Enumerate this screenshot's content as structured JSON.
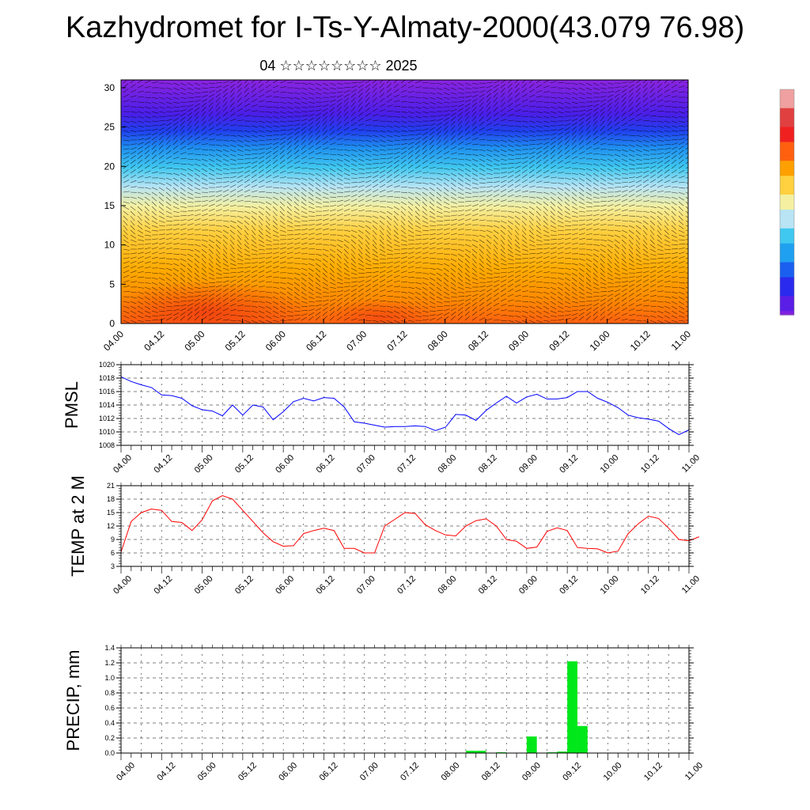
{
  "header": {
    "title": "Kazhydromet for I-Ts-Y-Almaty-2000(43.079 76.98)",
    "subtitle": "04 ☆☆☆☆☆☆☆☆ 2025"
  },
  "colors": {
    "pmsl_line": "#0000ff",
    "temp_line": "#ff0000",
    "precip_bar": "#00e81a",
    "colorbar": [
      "#7f1fe0",
      "#5a1ee6",
      "#2a2aee",
      "#1a5ff0",
      "#1fa0f0",
      "#40c8f0",
      "#b8e4f4",
      "#f4f0a0",
      "#ffd040",
      "#ffa000",
      "#ff6010",
      "#f02020",
      "#e04040",
      "#f0a0a0"
    ]
  },
  "chart_data": [
    {
      "id": "cross-section",
      "type": "heatmap",
      "x_tick_labels": [
        "04.00",
        "04.12",
        "05.00",
        "05.12",
        "06.00",
        "06.12",
        "07.00",
        "07.12",
        "08.00",
        "08.12",
        "09.00",
        "09.12",
        "10.00",
        "10.12",
        "11.00"
      ],
      "y_ticks": [
        0,
        5,
        10,
        15,
        20,
        25,
        30
      ],
      "ylim": [
        0,
        31
      ],
      "overlay": "wind barbs",
      "colorbar_tick_labels": []
    },
    {
      "id": "pmsl",
      "type": "line",
      "ylabel": "PMSL",
      "ylim": [
        1008,
        1020
      ],
      "y_ticks": [
        1008,
        1010,
        1012,
        1014,
        1016,
        1018,
        1020
      ],
      "x_tick_labels": [
        "04.00",
        "04.12",
        "05.00",
        "05.12",
        "06.00",
        "06.12",
        "07.00",
        "07.12",
        "08.00",
        "08.12",
        "09.00",
        "09.12",
        "10.00",
        "10.12",
        "11.00"
      ],
      "grid": true,
      "x_hours_step": 3,
      "series": [
        {
          "values": [
            1018.2,
            1017.5,
            1017.0,
            1016.6,
            1015.5,
            1015.4,
            1015.0,
            1013.9,
            1013.3,
            1013.1,
            1012.4,
            1014.0,
            1012.5,
            1014.0,
            1013.7,
            1011.8,
            1013.0,
            1014.5,
            1015.0,
            1014.6,
            1015.1,
            1015.0,
            1013.7,
            1011.5,
            1011.3,
            1011.0,
            1010.7,
            1010.8,
            1010.8,
            1010.9,
            1010.8,
            1010.2,
            1010.7,
            1012.6,
            1012.5,
            1011.7,
            1013.2,
            1014.3,
            1015.3,
            1014.3,
            1015.2,
            1015.6,
            1014.9,
            1014.9,
            1015.1,
            1016.0,
            1016.0,
            1015.0,
            1014.4,
            1013.6,
            1012.5,
            1012.1,
            1011.9,
            1011.6,
            1010.5,
            1009.6,
            1010.3
          ]
        }
      ]
    },
    {
      "id": "temp",
      "type": "line",
      "ylabel": "TEMP at 2 M",
      "ylim": [
        3,
        21
      ],
      "y_ticks": [
        3,
        6,
        9,
        12,
        15,
        18,
        21
      ],
      "x_tick_labels": [
        "04.00",
        "04.12",
        "05.00",
        "05.12",
        "06.00",
        "06.12",
        "07.00",
        "07.12",
        "08.00",
        "08.12",
        "09.00",
        "09.12",
        "10.00",
        "10.12",
        "11.00"
      ],
      "grid": true,
      "x_hours_step": 3,
      "series": [
        {
          "values": [
            6.2,
            13.0,
            15.0,
            15.8,
            15.5,
            13.0,
            12.8,
            11.0,
            13.4,
            17.6,
            18.8,
            18.0,
            15.5,
            13.0,
            10.5,
            8.5,
            7.5,
            7.6,
            10.3,
            11.0,
            11.5,
            11.0,
            7.0,
            7.0,
            6.0,
            6.0,
            12.0,
            13.5,
            15.0,
            14.8,
            12.3,
            11.0,
            10.0,
            9.8,
            12.0,
            13.2,
            13.6,
            12.0,
            9.0,
            8.6,
            7.0,
            7.3,
            10.8,
            11.6,
            11.0,
            7.2,
            7.0,
            6.9,
            6.0,
            6.4,
            10.3,
            12.5,
            14.2,
            13.7,
            11.5,
            9.0,
            8.7,
            9.6
          ]
        }
      ]
    },
    {
      "id": "precip",
      "type": "bar",
      "ylabel": "PRECIP, mm",
      "ylim": [
        0,
        1.4
      ],
      "y_ticks": [
        0.0,
        0.2,
        0.4,
        0.6,
        0.8,
        1.0,
        1.2,
        1.4
      ],
      "x_tick_labels": [
        "04.00",
        "04.12",
        "05.00",
        "05.12",
        "06.00",
        "06.12",
        "07.00",
        "07.12",
        "08.00",
        "08.12",
        "09.00",
        "09.12",
        "10.00",
        "10.12",
        "11.00"
      ],
      "grid": true,
      "x_hours_step": 3,
      "bar_width_hours": 3,
      "bars": [
        {
          "start_hour": 102,
          "value": 0.03
        },
        {
          "start_hour": 105,
          "value": 0.03
        },
        {
          "start_hour": 111,
          "value": 0.01
        },
        {
          "start_hour": 120,
          "value": 0.22
        },
        {
          "start_hour": 126,
          "value": 0.01
        },
        {
          "start_hour": 129,
          "value": 0.02
        },
        {
          "start_hour": 132,
          "value": 1.22
        },
        {
          "start_hour": 135,
          "value": 0.36
        }
      ]
    }
  ]
}
